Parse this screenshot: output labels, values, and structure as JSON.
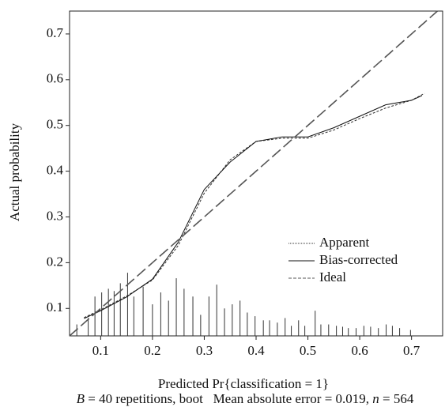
{
  "chart_data": {
    "type": "line",
    "x_label": "Predicted Pr{classification = 1}",
    "y_label": "Actual probability",
    "caption": {
      "parts": [
        "B",
        " = 40 repetitions, boot   Mean absolute error = 0.019, ",
        "n",
        " = 564"
      ]
    },
    "xlim": [
      0.04,
      0.76
    ],
    "ylim": [
      0.04,
      0.75
    ],
    "xticks": [
      0.1,
      0.2,
      0.3,
      0.4,
      0.5,
      0.6,
      0.7
    ],
    "yticks": [
      0.1,
      0.2,
      0.3,
      0.4,
      0.5,
      0.6,
      0.7
    ],
    "series": [
      {
        "name": "Apparent",
        "color": "#333333",
        "dash": "3,2",
        "x": [
          0.068,
          0.1,
          0.15,
          0.2,
          0.25,
          0.3,
          0.35,
          0.4,
          0.45,
          0.5,
          0.55,
          0.6,
          0.65,
          0.7,
          0.725
        ],
        "values": [
          0.08,
          0.097,
          0.127,
          0.162,
          0.238,
          0.352,
          0.425,
          0.465,
          0.472,
          0.472,
          0.49,
          0.515,
          0.538,
          0.555,
          0.57
        ]
      },
      {
        "name": "Bias-corrected",
        "color": "#111111",
        "dash": "none",
        "x": [
          0.068,
          0.1,
          0.15,
          0.2,
          0.25,
          0.3,
          0.35,
          0.4,
          0.45,
          0.5,
          0.55,
          0.6,
          0.65,
          0.7,
          0.72
        ],
        "values": [
          0.078,
          0.095,
          0.125,
          0.164,
          0.245,
          0.36,
          0.42,
          0.465,
          0.475,
          0.475,
          0.495,
          0.52,
          0.545,
          0.555,
          0.565
        ]
      },
      {
        "name": "Ideal",
        "color": "#555555",
        "dash": "14,5",
        "x": [
          0.04,
          0.75
        ],
        "values": [
          0.04,
          0.75
        ]
      }
    ],
    "spikes": {
      "color": "#333333",
      "x": [
        0.054,
        0.076,
        0.089,
        0.102,
        0.115,
        0.126,
        0.138,
        0.152,
        0.164,
        0.182,
        0.2,
        0.216,
        0.231,
        0.246,
        0.261,
        0.278,
        0.293,
        0.309,
        0.324,
        0.339,
        0.354,
        0.369,
        0.383,
        0.398,
        0.414,
        0.426,
        0.441,
        0.456,
        0.468,
        0.482,
        0.494,
        0.514,
        0.525,
        0.54,
        0.555,
        0.567,
        0.578,
        0.593,
        0.608,
        0.621,
        0.636,
        0.651,
        0.663,
        0.677,
        0.698
      ],
      "values": [
        0.065,
        0.079,
        0.126,
        0.135,
        0.143,
        0.138,
        0.155,
        0.178,
        0.126,
        0.148,
        0.109,
        0.135,
        0.117,
        0.166,
        0.143,
        0.126,
        0.086,
        0.126,
        0.152,
        0.1,
        0.109,
        0.117,
        0.091,
        0.083,
        0.074,
        0.074,
        0.069,
        0.079,
        0.062,
        0.074,
        0.062,
        0.095,
        0.065,
        0.065,
        0.062,
        0.06,
        0.057,
        0.057,
        0.062,
        0.06,
        0.057,
        0.065,
        0.062,
        0.057,
        0.053
      ]
    }
  }
}
